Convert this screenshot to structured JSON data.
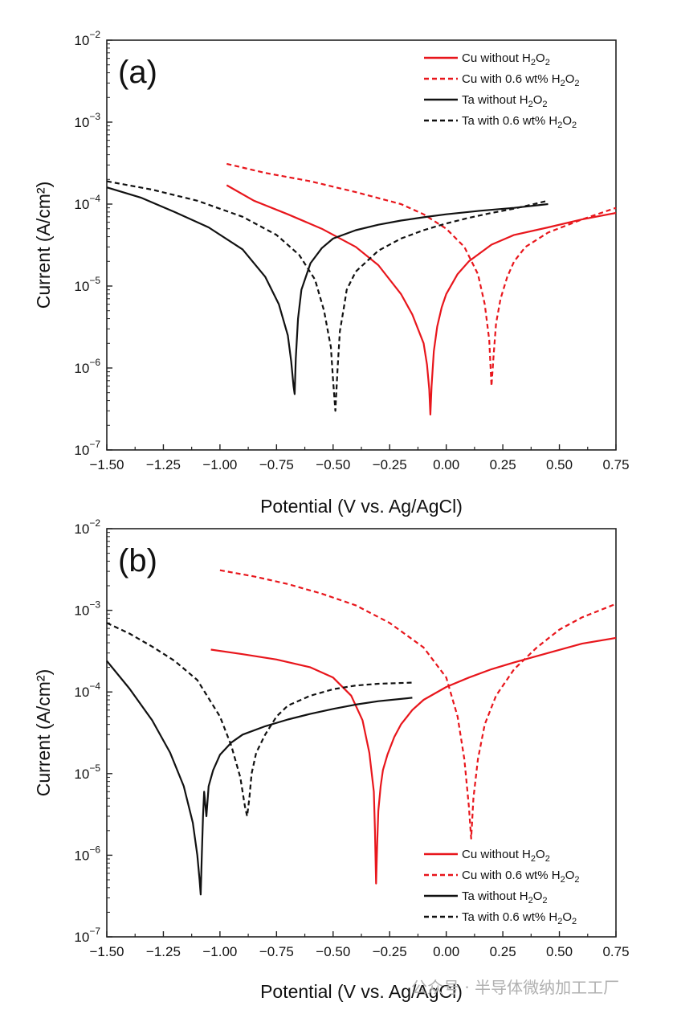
{
  "colors": {
    "cu": "#e8161c",
    "ta": "#111111",
    "axis": "#222222"
  },
  "watermark": {
    "text": "公众号 · 半导体微纳加工工厂"
  },
  "chart_data": [
    {
      "type": "line",
      "panel_label": "(a)",
      "xlabel": "Potential (V vs. Ag/AgCl)",
      "ylabel": "Current (A/cm²)",
      "xlim": [
        -1.5,
        0.75
      ],
      "ylim": [
        1e-07,
        0.01
      ],
      "yscale": "log",
      "xticks": [
        "−1.50",
        "−1.25",
        "−1.00",
        "−0.75",
        "−0.50",
        "−0.25",
        "0.00",
        "0.25",
        "0.50",
        "0.75"
      ],
      "yticks": [
        {
          "base": "10",
          "exp": "−2"
        },
        {
          "base": "10",
          "exp": "−3"
        },
        {
          "base": "10",
          "exp": "−4"
        },
        {
          "base": "10",
          "exp": "−5"
        },
        {
          "base": "10",
          "exp": "−6"
        },
        {
          "base": "10",
          "exp": "−7"
        }
      ],
      "legend_position": "top-right",
      "series": [
        {
          "name": "Cu without H2O2",
          "color": "#e8161c",
          "dash": "solid",
          "x": [
            -0.97,
            -0.85,
            -0.7,
            -0.55,
            -0.4,
            -0.3,
            -0.2,
            -0.15,
            -0.1,
            -0.085,
            -0.075,
            -0.07,
            -0.065,
            -0.055,
            -0.04,
            -0.02,
            0.0,
            0.05,
            0.1,
            0.2,
            0.3,
            0.45,
            0.6,
            0.75
          ],
          "y": [
            0.00017,
            0.00011,
            7.5e-05,
            5e-05,
            3e-05,
            1.8e-05,
            8e-06,
            4.5e-06,
            2e-06,
            1.1e-06,
            5.5e-07,
            2.7e-07,
            6e-07,
            1.6e-06,
            3.2e-06,
            5.5e-06,
            8e-06,
            1.4e-05,
            2e-05,
            3.2e-05,
            4.2e-05,
            5.2e-05,
            6.5e-05,
            7.8e-05
          ]
        },
        {
          "name": "Cu with 0.6 wt% H2O2",
          "color": "#e8161c",
          "dash": "dashed",
          "x": [
            -0.97,
            -0.8,
            -0.6,
            -0.4,
            -0.2,
            -0.1,
            0.0,
            0.08,
            0.14,
            0.17,
            0.19,
            0.2,
            0.21,
            0.22,
            0.24,
            0.27,
            0.3,
            0.35,
            0.45,
            0.6,
            0.75
          ],
          "y": [
            0.00031,
            0.00024,
            0.00019,
            0.00014,
            0.0001,
            7.5e-05,
            5e-05,
            3e-05,
            1.4e-05,
            6e-06,
            2.2e-06,
            6e-07,
            1.5e-06,
            3.5e-06,
            7e-06,
            1.3e-05,
            2e-05,
            3e-05,
            4.5e-05,
            6.5e-05,
            9e-05
          ]
        },
        {
          "name": "Ta without H2O2",
          "color": "#111111",
          "dash": "solid",
          "x": [
            -1.5,
            -1.35,
            -1.2,
            -1.05,
            -0.9,
            -0.8,
            -0.74,
            -0.7,
            -0.685,
            -0.675,
            -0.67,
            -0.665,
            -0.655,
            -0.64,
            -0.6,
            -0.55,
            -0.5,
            -0.4,
            -0.3,
            -0.2,
            -0.1,
            0.0,
            0.15,
            0.3,
            0.45
          ],
          "y": [
            0.00016,
            0.00012,
            8e-05,
            5.2e-05,
            2.8e-05,
            1.3e-05,
            6e-06,
            2.5e-06,
            1.2e-06,
            6e-07,
            4.8e-07,
            1.3e-06,
            4e-06,
            9e-06,
            1.9e-05,
            2.9e-05,
            3.8e-05,
            4.8e-05,
            5.6e-05,
            6.3e-05,
            6.9e-05,
            7.5e-05,
            8.3e-05,
            9e-05,
            0.0001
          ]
        },
        {
          "name": "Ta with 0.6 wt% H2O2",
          "color": "#111111",
          "dash": "dashed",
          "x": [
            -1.5,
            -1.3,
            -1.1,
            -0.9,
            -0.75,
            -0.65,
            -0.58,
            -0.54,
            -0.51,
            -0.5,
            -0.49,
            -0.48,
            -0.47,
            -0.45,
            -0.44,
            -0.4,
            -0.3,
            -0.2,
            -0.1,
            0.0,
            0.1,
            0.2,
            0.3,
            0.45
          ],
          "y": [
            0.00019,
            0.00015,
            0.00011,
            7e-05,
            4.2e-05,
            2.4e-05,
            1.2e-05,
            5e-06,
            1.8e-06,
            7e-07,
            3e-07,
            1e-06,
            2.8e-06,
            6e-06,
            9e-06,
            1.5e-05,
            2.7e-05,
            3.8e-05,
            4.8e-05,
            5.8e-05,
            6.8e-05,
            7.8e-05,
            8.8e-05,
            0.00011
          ]
        }
      ]
    },
    {
      "type": "line",
      "panel_label": "(b)",
      "xlabel": "Potential (V vs. Ag/AgCl)",
      "ylabel": "Current (A/cm²)",
      "xlim": [
        -1.5,
        0.75
      ],
      "ylim": [
        1e-07,
        0.01
      ],
      "yscale": "log",
      "xticks": [
        "−1.50",
        "−1.25",
        "−1.00",
        "−0.75",
        "−0.50",
        "−0.25",
        "0.00",
        "0.25",
        "0.50",
        "0.75"
      ],
      "yticks": [
        {
          "base": "10",
          "exp": "−2"
        },
        {
          "base": "10",
          "exp": "−3"
        },
        {
          "base": "10",
          "exp": "−4"
        },
        {
          "base": "10",
          "exp": "−5"
        },
        {
          "base": "10",
          "exp": "−6"
        },
        {
          "base": "10",
          "exp": "−7"
        }
      ],
      "legend_position": "bottom-right",
      "series": [
        {
          "name": "Cu without H2O2",
          "color": "#e8161c",
          "dash": "solid",
          "x": [
            -1.04,
            -0.9,
            -0.75,
            -0.6,
            -0.5,
            -0.42,
            -0.37,
            -0.34,
            -0.32,
            -0.315,
            -0.31,
            -0.305,
            -0.3,
            -0.29,
            -0.28,
            -0.26,
            -0.23,
            -0.2,
            -0.15,
            -0.1,
            0.0,
            0.1,
            0.2,
            0.3,
            0.45,
            0.6,
            0.75
          ],
          "y": [
            0.00033,
            0.00029,
            0.00025,
            0.0002,
            0.00015,
            9e-05,
            4.5e-05,
            1.8e-05,
            6e-06,
            2e-06,
            4.5e-07,
            1.4e-06,
            3.5e-06,
            7e-06,
            1.1e-05,
            1.7e-05,
            2.8e-05,
            4e-05,
            6e-05,
            8e-05,
            0.000115,
            0.00015,
            0.00019,
            0.00023,
            0.0003,
            0.00039,
            0.00046
          ]
        },
        {
          "name": "Cu with 0.6 wt% H2O2",
          "color": "#e8161c",
          "dash": "dashed",
          "x": [
            -1.0,
            -0.85,
            -0.7,
            -0.55,
            -0.4,
            -0.25,
            -0.1,
            0.0,
            0.05,
            0.08,
            0.1,
            0.11,
            0.12,
            0.14,
            0.17,
            0.22,
            0.3,
            0.4,
            0.5,
            0.6,
            0.75
          ],
          "y": [
            0.0031,
            0.0026,
            0.0021,
            0.0016,
            0.00115,
            0.0007,
            0.00035,
            0.00015,
            5e-05,
            1.5e-05,
            4e-06,
            1.6e-06,
            5e-06,
            1.5e-05,
            4e-05,
            9e-05,
            0.00019,
            0.00035,
            0.00058,
            0.00082,
            0.0012
          ]
        },
        {
          "name": "Ta without H2O2",
          "color": "#111111",
          "dash": "solid",
          "x": [
            -1.5,
            -1.4,
            -1.3,
            -1.22,
            -1.16,
            -1.12,
            -1.1,
            -1.09,
            -1.085,
            -1.08,
            -1.075,
            -1.07,
            -1.06,
            -1.05,
            -1.03,
            -1.0,
            -0.95,
            -0.9,
            -0.8,
            -0.7,
            -0.6,
            -0.5,
            -0.4,
            -0.3,
            -0.15
          ],
          "y": [
            0.00024,
            0.00011,
            4.5e-05,
            1.8e-05,
            7e-06,
            2.5e-06,
            1e-06,
            5e-07,
            3.3e-07,
            1e-06,
            3e-06,
            6e-06,
            3e-06,
            7e-06,
            1.1e-05,
            1.7e-05,
            2.4e-05,
            3e-05,
            3.8e-05,
            4.6e-05,
            5.4e-05,
            6.2e-05,
            7e-05,
            7.7e-05,
            8.5e-05
          ]
        },
        {
          "name": "Ta with 0.6 wt% H2O2",
          "color": "#111111",
          "dash": "dashed",
          "x": [
            -1.5,
            -1.4,
            -1.3,
            -1.2,
            -1.1,
            -1.0,
            -0.95,
            -0.91,
            -0.89,
            -0.88,
            -0.87,
            -0.86,
            -0.84,
            -0.8,
            -0.75,
            -0.7,
            -0.6,
            -0.5,
            -0.4,
            -0.3,
            -0.15
          ],
          "y": [
            0.0007,
            0.00052,
            0.00036,
            0.00024,
            0.00014,
            5e-05,
            2.2e-05,
            9e-06,
            4e-06,
            3e-06,
            5e-06,
            1e-05,
            1.8e-05,
            3e-05,
            5e-05,
            6.8e-05,
            9e-05,
            0.000108,
            0.00012,
            0.000126,
            0.00013
          ]
        }
      ]
    }
  ]
}
